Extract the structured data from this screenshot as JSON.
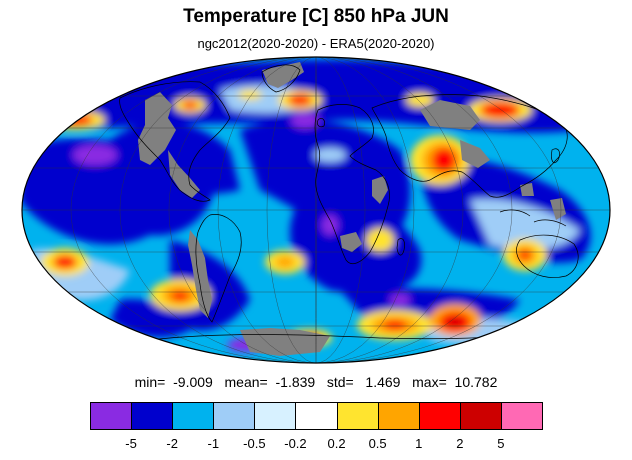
{
  "title": "Temperature [C] 850 hPa JUN",
  "subtitle": "ngc2012(2020-2020) - ERA5(2020-2020)",
  "stats": {
    "min_label": "min=",
    "min": "-9.009",
    "mean_label": "mean=",
    "mean": "-1.839",
    "std_label": "std=",
    "std": "1.469",
    "max_label": "max=",
    "max": "10.782"
  },
  "colorbar": {
    "colors": [
      "#8a2be2",
      "#0000cd",
      "#00b2ee",
      "#9fcdf7",
      "#d7f1ff",
      "#ffffff",
      "#ffe42f",
      "#ffa500",
      "#ff0000",
      "#cd0000",
      "#ff69b4"
    ],
    "labels": [
      "-5",
      "-2",
      "-1",
      "-0.5",
      "-0.2",
      "0.2",
      "0.5",
      "1",
      "2",
      "5"
    ]
  },
  "map": {
    "projection": "mollweide",
    "missing_color": "#808080",
    "coastline_color": "#000000",
    "grid": true
  }
}
